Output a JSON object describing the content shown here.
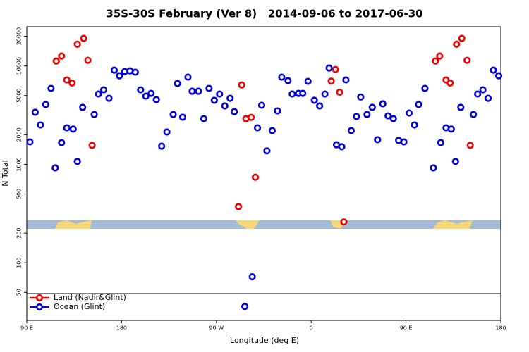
{
  "chart_data": {
    "type": "scatter",
    "title": "35S-30S February (Ver 8)   2014-09-06 to 2017-06-30",
    "x_label": "Longitude (deg E)",
    "y_label": "N Total",
    "xlim": [
      90,
      540
    ],
    "xticks": [
      {
        "value": 90,
        "label": "90 E"
      },
      {
        "value": 180,
        "label": "180"
      },
      {
        "value": 270,
        "label": "90 W"
      },
      {
        "value": 360,
        "label": "0"
      },
      {
        "value": 450,
        "label": "90 E"
      },
      {
        "value": 540,
        "label": "180"
      }
    ],
    "ylim": [
      26,
      25000
    ],
    "yscale": "log",
    "yticks": [
      50,
      100,
      200,
      500,
      1000,
      2000,
      5000,
      10000,
      20000
    ],
    "legend": "lower left",
    "series": [
      {
        "name": "Land (Nadir&Glint)",
        "color": "#ee0000",
        "x": [
          118,
          123,
          128,
          133,
          138,
          144,
          148,
          152,
          291,
          294,
          298,
          303,
          307,
          379,
          383,
          387,
          391,
          478,
          482,
          488,
          492,
          498,
          503,
          508,
          511
        ],
        "values": [
          11200,
          12600,
          7200,
          6700,
          16600,
          19000,
          11400,
          1560,
          372,
          6400,
          2900,
          3000,
          740,
          7000,
          9200,
          5400,
          260,
          11200,
          12600,
          7200,
          6700,
          16600,
          19000,
          11400,
          1560
        ]
      },
      {
        "name": "Ocean (Glint)",
        "color": "#0000dd",
        "x": [
          93,
          98,
          103,
          108,
          113,
          117,
          123,
          128,
          134,
          138,
          143,
          154,
          158,
          163,
          168,
          173,
          178,
          183,
          188,
          193,
          198,
          203,
          208,
          213,
          218,
          223,
          229,
          233,
          238,
          243,
          247,
          253,
          258,
          263,
          268,
          273,
          278,
          283,
          287,
          297,
          304,
          309,
          313,
          318,
          323,
          328,
          332,
          338,
          342,
          348,
          352,
          357,
          363,
          368,
          373,
          377,
          384,
          389,
          393,
          398,
          403,
          407,
          413,
          418,
          423,
          428,
          433,
          438,
          443,
          448,
          453,
          458,
          462,
          468,
          476,
          483,
          488,
          493,
          497,
          502,
          514,
          518,
          523,
          528,
          533,
          538
        ],
        "values": [
          1690,
          3380,
          2510,
          4050,
          5910,
          920,
          1660,
          2350,
          2280,
          1070,
          3790,
          3210,
          5180,
          5720,
          4690,
          9060,
          7940,
          8770,
          8910,
          8630,
          5720,
          4930,
          5260,
          4540,
          1530,
          2130,
          3210,
          6630,
          3010,
          7690,
          5530,
          5530,
          2910,
          5910,
          4470,
          5180,
          3920,
          4690,
          3430,
          36,
          72,
          2350,
          3980,
          1370,
          2200,
          3490,
          7690,
          7080,
          5180,
          5260,
          5260,
          6970,
          4470,
          3920,
          5180,
          9520,
          1580,
          1510,
          7200,
          2200,
          3060,
          4830,
          3210,
          3790,
          1780,
          4120,
          3110,
          2910,
          1750,
          1690,
          3320,
          2510,
          4050,
          5910,
          920,
          1660,
          2350,
          2280,
          1070,
          3790,
          3210,
          5180,
          5720,
          4690,
          9060,
          7940
        ]
      }
    ]
  }
}
